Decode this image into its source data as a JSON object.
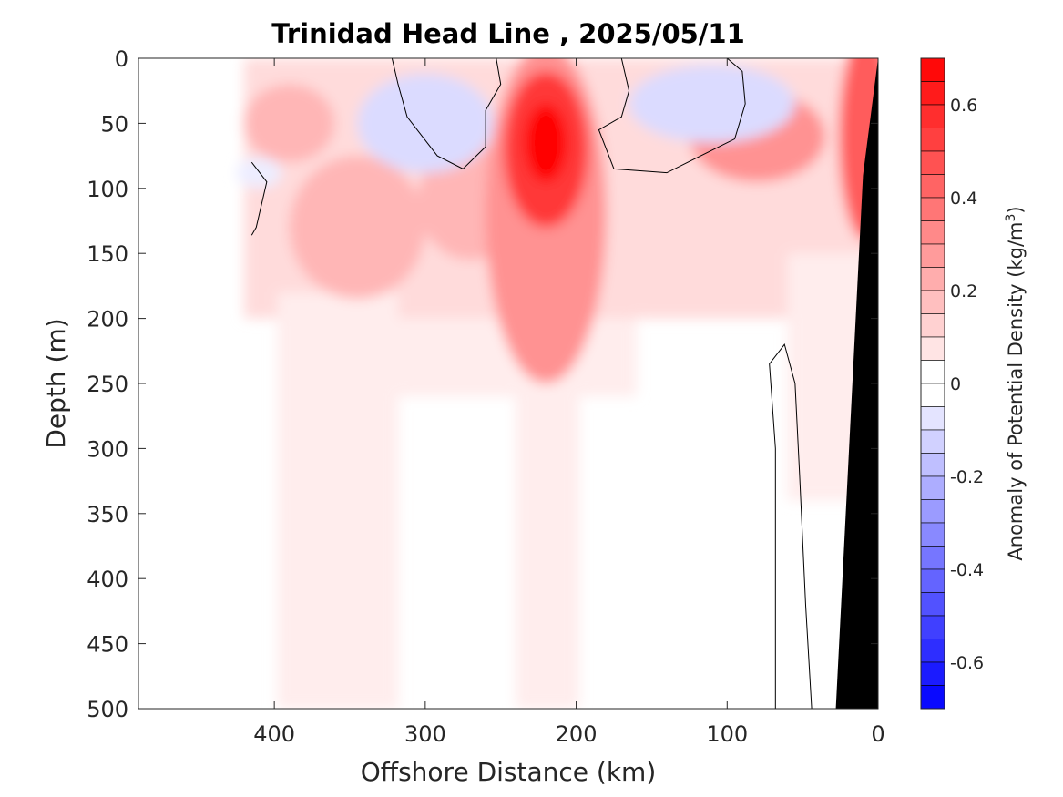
{
  "chart_data": {
    "type": "heatmap",
    "title": "Trinidad Head Line , 2025/05/11",
    "xlabel": "Offshore Distance (km)",
    "ylabel": "Depth (m)",
    "xlim": [
      490,
      0
    ],
    "ylim": [
      0,
      500
    ],
    "x_reversed": true,
    "y_reversed": true,
    "xticks": [
      400,
      300,
      200,
      100,
      0
    ],
    "yticks": [
      0,
      50,
      100,
      150,
      200,
      250,
      300,
      350,
      400,
      450,
      500
    ],
    "colorbar": {
      "label": "Anomaly of Potential Density (kg/m",
      "label_sup": "3",
      "label_end": ")",
      "range": [
        -0.7,
        0.7
      ],
      "level_step": 0.05,
      "ticks": [
        0.6,
        0.4,
        0.2,
        0,
        -0.2,
        -0.4,
        -0.6
      ],
      "colors": {
        "negative": "#0000ff",
        "zero": "#ffffff",
        "positive": "#ff0000"
      }
    },
    "data_x_extent": [
      420,
      0
    ],
    "bathymetry_color": "#000000",
    "contour_level": 0,
    "features": [
      {
        "name": "core anomaly",
        "x": 220,
        "depth": 70,
        "value": 0.7
      },
      {
        "name": "coastal anomaly",
        "x": 5,
        "depth": 40,
        "value": 0.55
      },
      {
        "name": "subsurface anomaly",
        "x": 345,
        "depth": 130,
        "value": 0.3
      },
      {
        "name": "subsurface anomaly",
        "x": 270,
        "depth": 110,
        "value": 0.28
      },
      {
        "name": "subsurface anomaly",
        "x": 80,
        "depth": 60,
        "value": 0.35
      },
      {
        "name": "upper anomaly",
        "x": 390,
        "depth": 50,
        "value": 0.25
      },
      {
        "name": "negative anomaly",
        "x": 300,
        "depth": 50,
        "value": -0.13
      },
      {
        "name": "negative anomaly",
        "x": 110,
        "depth": 35,
        "value": -0.12
      },
      {
        "name": "negative anomaly",
        "x": 410,
        "depth": 90,
        "value": -0.08
      }
    ]
  }
}
